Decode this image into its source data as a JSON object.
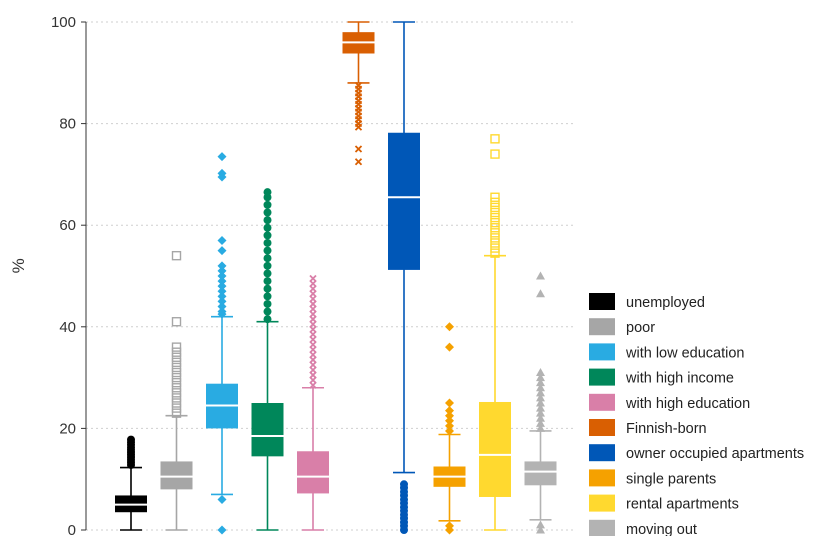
{
  "chart_data": {
    "type": "boxplot",
    "title": "",
    "xlabel": "",
    "ylabel": "%",
    "ylim": [
      0,
      100
    ],
    "yticks": [
      0,
      20,
      40,
      60,
      80,
      100
    ],
    "grid": true,
    "legend_position": "bottom-right",
    "series": [
      {
        "name": "unemployed",
        "color": "#000000",
        "marker": "circle",
        "whisker_low": 0,
        "q1": 3.5,
        "median": 5,
        "q3": 6.8,
        "whisker_high": 12.3,
        "outliers": [
          12.8,
          13.3,
          13.8,
          14.3,
          14.8,
          15.3,
          15.8,
          16.3,
          16.8,
          17.3,
          17.8
        ]
      },
      {
        "name": "poor",
        "color": "#a6a6a6",
        "marker": "square",
        "whisker_low": 0,
        "q1": 8,
        "median": 10.5,
        "q3": 13.5,
        "whisker_high": 22.5,
        "outliers": [
          23,
          24,
          25,
          26,
          27,
          28,
          29,
          30,
          31,
          32,
          33,
          34,
          35,
          36,
          41,
          54
        ]
      },
      {
        "name": "with low education",
        "color": "#29abe2",
        "marker": "diamond",
        "whisker_low": 7,
        "q1": 20,
        "median": 24.5,
        "q3": 28.8,
        "whisker_high": 42,
        "outliers": [
          0,
          6,
          42.5,
          43,
          44,
          45,
          46,
          47,
          48,
          49,
          50,
          51,
          52,
          55,
          57,
          69.5,
          70.2,
          73.5
        ]
      },
      {
        "name": "with high income",
        "color": "#00875a",
        "marker": "circle",
        "whisker_low": 0,
        "q1": 14.5,
        "median": 18.5,
        "q3": 25,
        "whisker_high": 41,
        "outliers": [
          41.5,
          43,
          44.5,
          46,
          47.5,
          49,
          50.5,
          52,
          53.5,
          55,
          56.5,
          58,
          59.5,
          61,
          62.5,
          64,
          65.5,
          66.5
        ]
      },
      {
        "name": "with high education",
        "color": "#d97fa8",
        "marker": "x",
        "whisker_low": 0,
        "q1": 7.2,
        "median": 10.5,
        "q3": 15.5,
        "whisker_high": 28,
        "outliers": [
          28.5,
          29.5,
          30.5,
          31.5,
          32.5,
          33.5,
          34.5,
          35.5,
          36.5,
          37.5,
          38.5,
          39.5,
          40.5,
          41.5,
          42.5,
          43.5,
          44.5,
          45.5,
          46.5,
          47.5,
          48.5,
          49.5
        ]
      },
      {
        "name": "Finnish-born",
        "color": "#d95f02",
        "marker": "x",
        "whisker_low": 88,
        "q1": 93.8,
        "median": 96,
        "q3": 98,
        "whisker_high": 100,
        "outliers": [
          87.5,
          86.8,
          86,
          85.3,
          84.5,
          83.8,
          83,
          82.3,
          81.5,
          80.8,
          80,
          79.3,
          75,
          72.5
        ]
      },
      {
        "name": "owner occupied apartments",
        "color": "#0057b7",
        "marker": "circle",
        "whisker_low": 11.3,
        "q1": 51.2,
        "median": 65.5,
        "q3": 78.2,
        "whisker_high": 100,
        "outliers": [
          0,
          0.8,
          1.5,
          2.3,
          3,
          3.8,
          4.5,
          5.3,
          6,
          6.8,
          7.5,
          8.3,
          9
        ]
      },
      {
        "name": "single parents",
        "color": "#f5a100",
        "marker": "diamond",
        "whisker_low": 1.8,
        "q1": 8.5,
        "median": 10.5,
        "q3": 12.5,
        "whisker_high": 18.8,
        "outliers": [
          0,
          0.8,
          19.5,
          20.5,
          21.5,
          22.5,
          23.5,
          25,
          36,
          40
        ]
      },
      {
        "name": "rental apartments",
        "color": "#ffd92f",
        "marker": "square",
        "whisker_low": 0,
        "q1": 6.5,
        "median": 14.8,
        "q3": 25.2,
        "whisker_high": 54,
        "outliers": [
          54.5,
          55.5,
          56.5,
          57.5,
          58.5,
          59.5,
          60.5,
          61.5,
          62.5,
          63.5,
          64.5,
          65.5,
          74,
          77
        ]
      },
      {
        "name": "moving out",
        "color": "#b3b3b3",
        "marker": "triangle",
        "whisker_low": 2,
        "q1": 8.8,
        "median": 11.5,
        "q3": 13.5,
        "whisker_high": 19.5,
        "outliers": [
          0,
          1,
          20,
          21,
          22,
          23,
          24,
          25,
          26,
          27,
          28,
          29,
          30,
          31,
          46.5,
          50
        ]
      }
    ]
  }
}
